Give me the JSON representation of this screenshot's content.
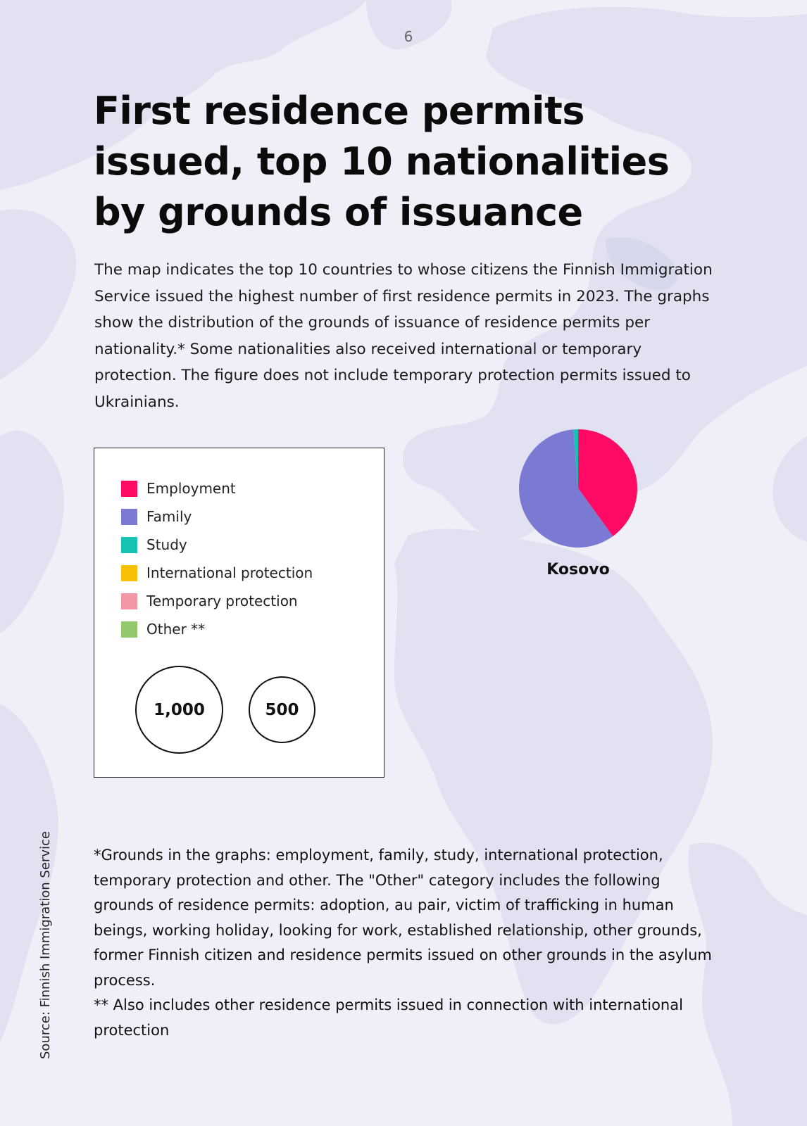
{
  "page_number": "6",
  "title": "First residence permits issued, top 10 nationalities by grounds of issuance",
  "intro": "The map indicates the top 10 countries to whose citizens the Finnish Immigration Service issued the highest number of first residence permits in 2023. The graphs show the distribution of the grounds of issuance of residence permits per nationality.* Some nationalities also received international or temporary protection. The figure does not include temporary protection permits issued to Ukrainians.",
  "legend": {
    "items": [
      {
        "label": "Employment",
        "color": "#ff0a64"
      },
      {
        "label": "Family",
        "color": "#7a7ad2"
      },
      {
        "label": "Study",
        "color": "#16c2b4"
      },
      {
        "label": "International protection",
        "color": "#f6c108"
      },
      {
        "label": "Temporary protection",
        "color": "#f397a7"
      },
      {
        "label": "Other **",
        "color": "#93c96c"
      }
    ],
    "size_1000": "1,000",
    "size_500": "500"
  },
  "chart_data": {
    "type": "pie",
    "title": "",
    "categories": [
      "Employment",
      "Family",
      "Study"
    ],
    "label": "Kosovo",
    "values_pct": [
      40.0,
      58.7,
      1.3
    ],
    "colors": [
      "#ff0a64",
      "#7a7ad2",
      "#16c2b4"
    ]
  },
  "footnote": {
    "line1": "*Grounds in the graphs: employment, family, study, international protection, temporary protection and other. The \"Other\" category includes the following grounds of residence permits: adoption, au pair, victim of trafficking in human beings, working holiday, looking for work, established relationship, other grounds, former Finnish citizen and residence permits issued on other grounds in the asylum process.",
    "line2": "** Also includes other residence permits issued in connection with international protection"
  },
  "source": "Source: Finnish Immigration Service",
  "colors": {
    "background": "#efeff8",
    "map_land": "#e2e2f2"
  }
}
